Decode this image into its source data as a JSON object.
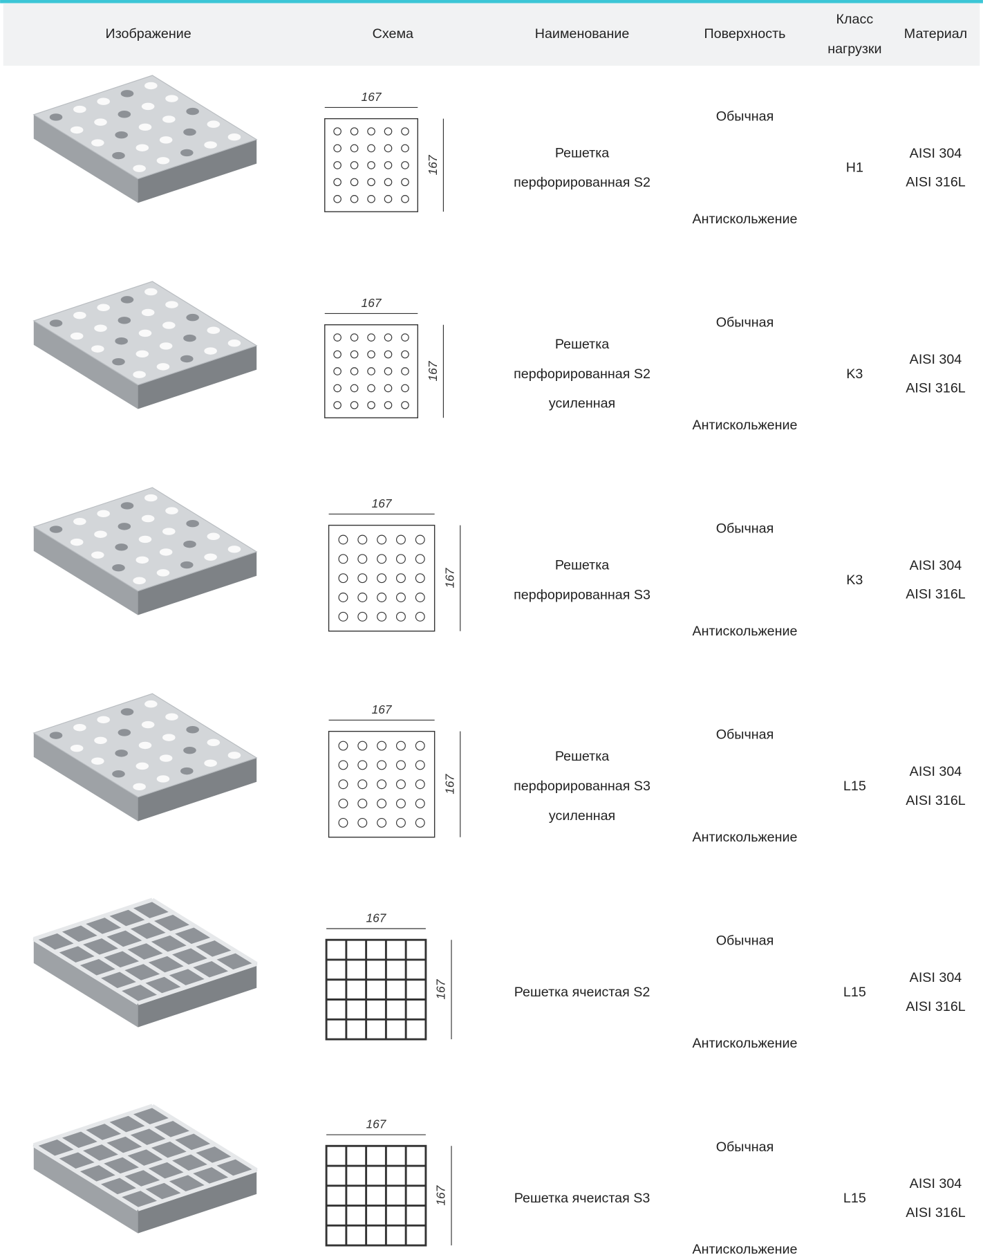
{
  "header": {
    "columns": [
      "Изображение",
      "Схема",
      "Наименование",
      "Поверхность",
      [
        "Класс",
        "нагрузки"
      ],
      "Материал"
    ]
  },
  "rows": [
    {
      "kind": "perforated",
      "scheme": {
        "width": 167,
        "height": 167
      },
      "name": [
        "Решетка",
        "перфорированная S2"
      ],
      "surface": [
        "Обычная",
        "Антискольжение"
      ],
      "load_class": "H1",
      "material": [
        "AISI 304",
        "AISI 316L"
      ]
    },
    {
      "kind": "perforated",
      "scheme": {
        "width": 167,
        "height": 167
      },
      "name": [
        "Решетка",
        "перфорированная S2",
        "усиленная"
      ],
      "surface": [
        "Обычная",
        "Антискольжение"
      ],
      "load_class": "K3",
      "material": [
        "AISI 304",
        "AISI 316L"
      ]
    },
    {
      "kind": "perforated",
      "scheme": {
        "width": 167,
        "height": 167
      },
      "name": [
        "Решетка",
        "перфорированная S3"
      ],
      "surface": [
        "Обычная",
        "Антискольжение"
      ],
      "load_class": "K3",
      "material": [
        "AISI 304",
        "AISI 316L"
      ]
    },
    {
      "kind": "perforated",
      "scheme": {
        "width": 167,
        "height": 167
      },
      "name": [
        "Решетка",
        "перфорированная S3",
        "усиленная"
      ],
      "surface": [
        "Обычная",
        "Антискольжение"
      ],
      "load_class": "L15",
      "material": [
        "AISI 304",
        "AISI 316L"
      ]
    },
    {
      "kind": "cell",
      "scheme": {
        "width": 167,
        "height": 167
      },
      "name": [
        "Решетка ячеистая S2"
      ],
      "surface": [
        "Обычная",
        "Антискольжение"
      ],
      "load_class": "L15",
      "material": [
        "AISI 304",
        "AISI 316L"
      ]
    },
    {
      "kind": "cell",
      "scheme": {
        "width": 167,
        "height": 167
      },
      "name": [
        "Решетка ячеистая S3"
      ],
      "surface": [
        "Обычная",
        "Антискольжение"
      ],
      "load_class": "L15",
      "material": [
        "AISI 304",
        "AISI 316L"
      ]
    }
  ]
}
